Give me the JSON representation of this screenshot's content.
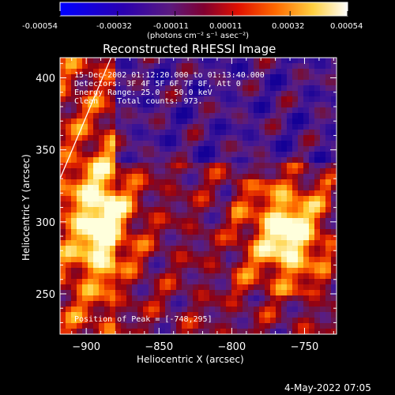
{
  "colorbar": {
    "tick_labels": [
      "-0.00054",
      "-0.00032",
      "-0.00011",
      "0.00011",
      "0.00032",
      "0.00054"
    ],
    "units_label": "(photons cm⁻² s⁻¹ asec⁻²)",
    "colors": [
      "#0000ff",
      "#3a007a",
      "#7a1a7a",
      "#c0002a",
      "#ff3300",
      "#ff9900",
      "#ffff80",
      "#ffffff"
    ]
  },
  "chart_data": {
    "type": "heatmap",
    "title": "Reconstructed RHESSI Image",
    "xlabel": "Heliocentric X (arcsec)",
    "ylabel": "Heliocentric Y (arcsec)",
    "xlim": [
      -918,
      -728
    ],
    "ylim": [
      222,
      414
    ],
    "x_ticks": [
      -900,
      -850,
      -800,
      -750
    ],
    "y_ticks": [
      250,
      300,
      350,
      400
    ],
    "annotations": {
      "time_range": "15-Dec-2002 01:12:20.000 to 01:13:40.000",
      "detectors": "Detectors: 3F 4F 5F 6F 7F 8F, Att 0",
      "energy": "Energy Range: 25.0 - 50.0 keV",
      "clean": "Clean    Total counts: 973.",
      "peak": "Position of Peak = [-748,295]"
    },
    "limb": {
      "x": [
        -918,
        -883
      ],
      "y": [
        330,
        414
      ]
    },
    "bright_regions": [
      {
        "x": -888,
        "y": 300
      },
      {
        "x": -762,
        "y": 292
      }
    ]
  },
  "footer": {
    "timestamp": "4-May-2022 07:05"
  }
}
